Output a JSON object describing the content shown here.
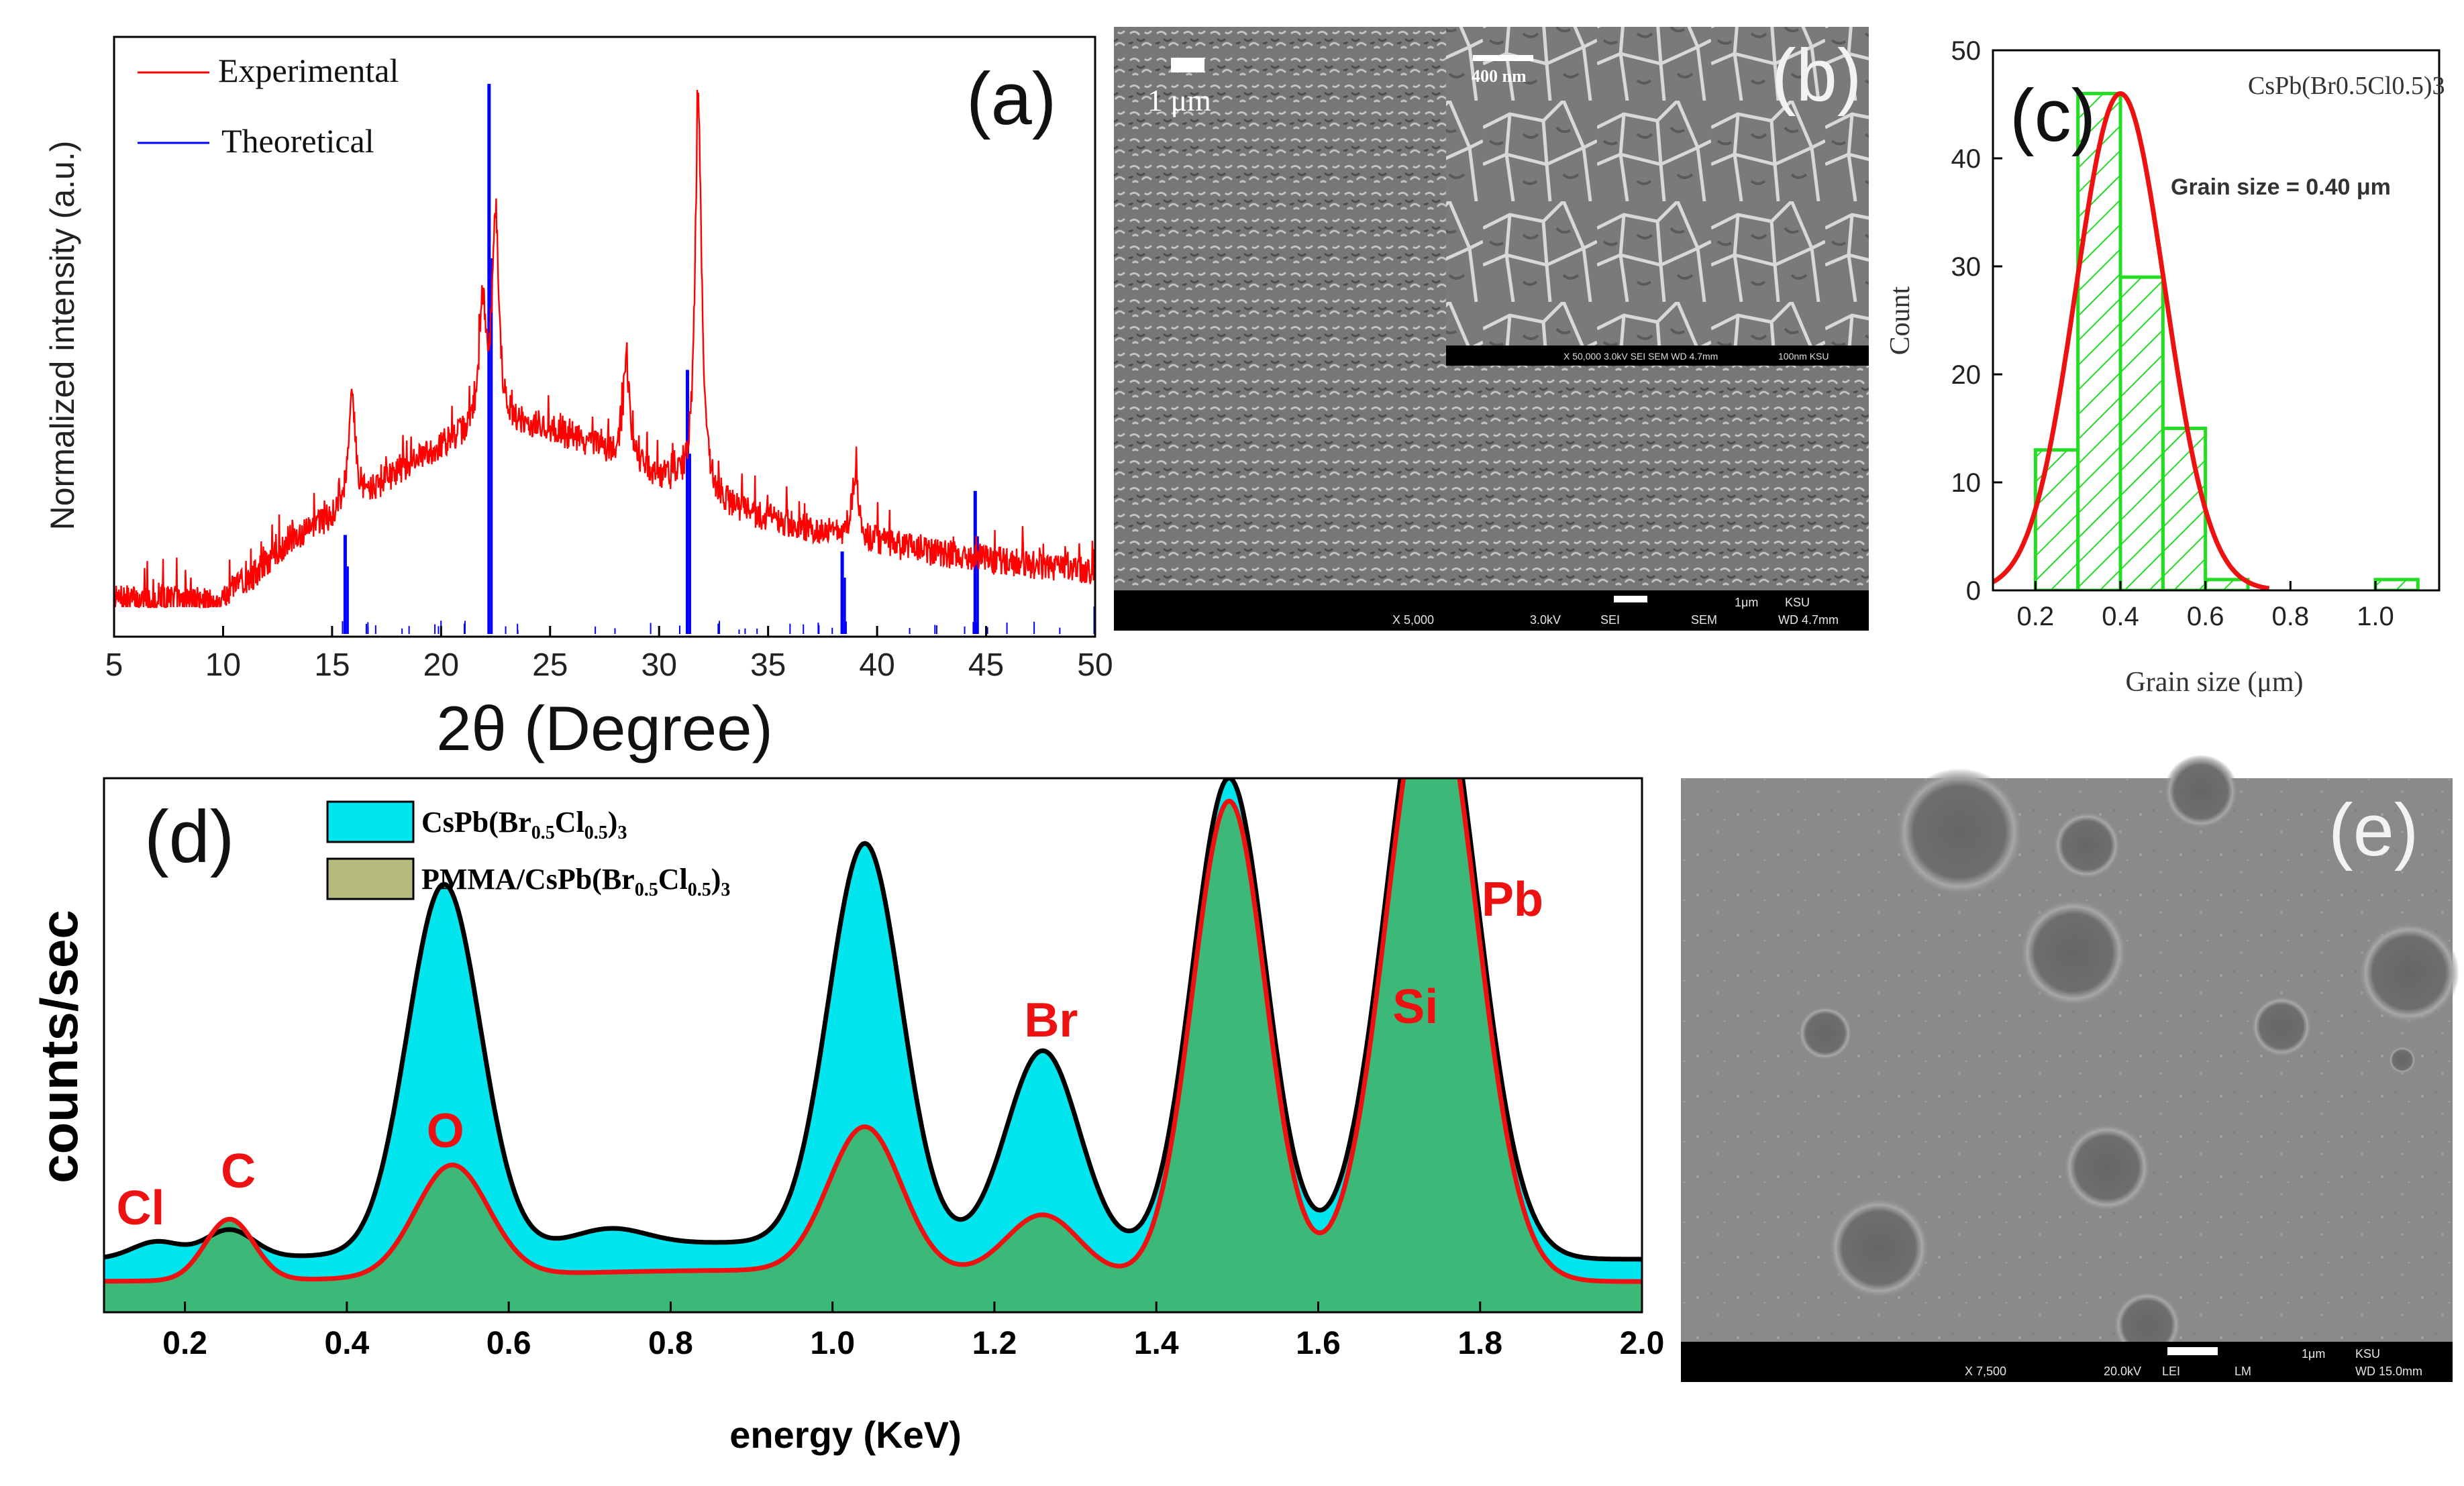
{
  "chart_data": [
    {
      "id": "a",
      "type": "line",
      "panel_label": "(a)",
      "xlabel": "2θ (Degree)",
      "ylabel": "Normalized intensity (a.u.)",
      "xlim": [
        5,
        50
      ],
      "xticks": [
        5,
        10,
        15,
        20,
        25,
        30,
        35,
        40,
        45,
        50
      ],
      "legend": [
        {
          "label": "Experimental",
          "color": "#ff0000"
        },
        {
          "label": "Theoretical",
          "color": "#0000ff"
        }
      ],
      "experimental_peaks": [
        {
          "x": 15.9,
          "y": 0.42
        },
        {
          "x": 21.9,
          "y": 0.43
        },
        {
          "x": 22.5,
          "y": 0.62
        },
        {
          "x": 28.5,
          "y": 0.38
        },
        {
          "x": 31.8,
          "y": 1.0
        },
        {
          "x": 39.0,
          "y": 0.31
        }
      ],
      "theoretical_peaks": [
        {
          "x": 15.6,
          "y": 0.18
        },
        {
          "x": 22.2,
          "y": 1.0
        },
        {
          "x": 31.3,
          "y": 0.48
        },
        {
          "x": 38.4,
          "y": 0.15
        },
        {
          "x": 44.5,
          "y": 0.26
        },
        {
          "x": 50.0,
          "y": 0.05
        }
      ]
    },
    {
      "id": "c",
      "type": "bar",
      "panel_label": "(c)",
      "title": "CsPb(Br0.5Cl0.5)3",
      "annotation": "Grain size = 0.40 μm",
      "xlabel": "Grain size (μm)",
      "ylabel": "Count",
      "xlim": [
        0.1,
        1.15
      ],
      "ylim": [
        0,
        50
      ],
      "xticks": [
        0.2,
        0.4,
        0.6,
        0.8,
        1.0
      ],
      "yticks": [
        0,
        10,
        20,
        30,
        40,
        50
      ],
      "bins": [
        {
          "start": 0.2,
          "end": 0.3,
          "count": 13
        },
        {
          "start": 0.3,
          "end": 0.4,
          "count": 46
        },
        {
          "start": 0.4,
          "end": 0.5,
          "count": 29
        },
        {
          "start": 0.5,
          "end": 0.6,
          "count": 15
        },
        {
          "start": 0.6,
          "end": 0.7,
          "count": 1
        },
        {
          "start": 1.0,
          "end": 1.1,
          "count": 1
        }
      ],
      "fit": {
        "mean": 0.4,
        "sigma": 0.105,
        "amplitude": 46
      }
    },
    {
      "id": "d",
      "type": "area",
      "panel_label": "(d)",
      "xlabel": "energy (KeV)",
      "ylabel": "counts/sec",
      "xlim": [
        0.1,
        2.0
      ],
      "xticks": [
        0.2,
        0.4,
        0.6,
        0.8,
        1.0,
        1.2,
        1.4,
        1.6,
        1.8,
        2.0
      ],
      "legend": [
        {
          "label": "CsPb(Br0.5Cl0.5)3",
          "color": "#00e5ee"
        },
        {
          "label": "PMMA/CsPb(Br0.5Cl0.5)3",
          "color": "#b7ba7e"
        }
      ],
      "element_labels": [
        {
          "label": "Cl",
          "x": 0.17
        },
        {
          "label": "C",
          "x": 0.27
        },
        {
          "label": "O",
          "x": 0.53
        },
        {
          "label": "Br",
          "x": 1.27
        },
        {
          "label": "Si",
          "x": 1.72
        },
        {
          "label": "Pb",
          "x": 1.84
        }
      ],
      "series": [
        {
          "name": "CsPb(Br0.5Cl0.5)3",
          "peaks": [
            {
              "x": 0.165,
              "y": 0.03
            },
            {
              "x": 0.255,
              "y": 0.05
            },
            {
              "x": 0.52,
              "y": 0.66
            },
            {
              "x": 0.725,
              "y": 0.03
            },
            {
              "x": 1.04,
              "y": 0.72
            },
            {
              "x": 1.26,
              "y": 0.36
            },
            {
              "x": 1.49,
              "y": 0.86
            },
            {
              "x": 1.74,
              "y": 1.1
            }
          ]
        },
        {
          "name": "PMMA/CsPb(Br0.5Cl0.5)3",
          "peaks": [
            {
              "x": 0.255,
              "y": 0.11
            },
            {
              "x": 0.53,
              "y": 0.2
            },
            {
              "x": 1.04,
              "y": 0.26
            },
            {
              "x": 1.26,
              "y": 0.11
            },
            {
              "x": 1.49,
              "y": 0.86
            },
            {
              "x": 1.74,
              "y": 1.1
            }
          ]
        }
      ]
    }
  ],
  "sem_b": {
    "panel_label": "(b)",
    "scalebar_main": "1 μm",
    "scalebar_inset": "400 nm",
    "inset_info": "X 50,000   3.0kV  SEI    SEM    WD 4.7mm",
    "inset_scale": "100nm KSU",
    "info_left": "X 5,000",
    "info_kv": "3.0kV",
    "info_mode": "SEI",
    "info_sem": "SEM",
    "info_scale": "1μm",
    "info_org": "KSU",
    "info_wd": "WD 4.7mm"
  },
  "sem_e": {
    "panel_label": "(e)",
    "info_left": "X 7,500",
    "info_kv": "20.0kV",
    "info_mode": "LEI",
    "info_lm": "LM",
    "info_scale": "1μm",
    "info_org": "KSU",
    "info_wd": "WD 15.0mm"
  },
  "colors": {
    "red": "#ff0000",
    "blue": "#0000ff",
    "cyan": "#00e5ee",
    "green": "#3cb878",
    "olive": "#b7ba7e",
    "hist_green": "#22dd22",
    "fit_red": "#ee1111"
  }
}
